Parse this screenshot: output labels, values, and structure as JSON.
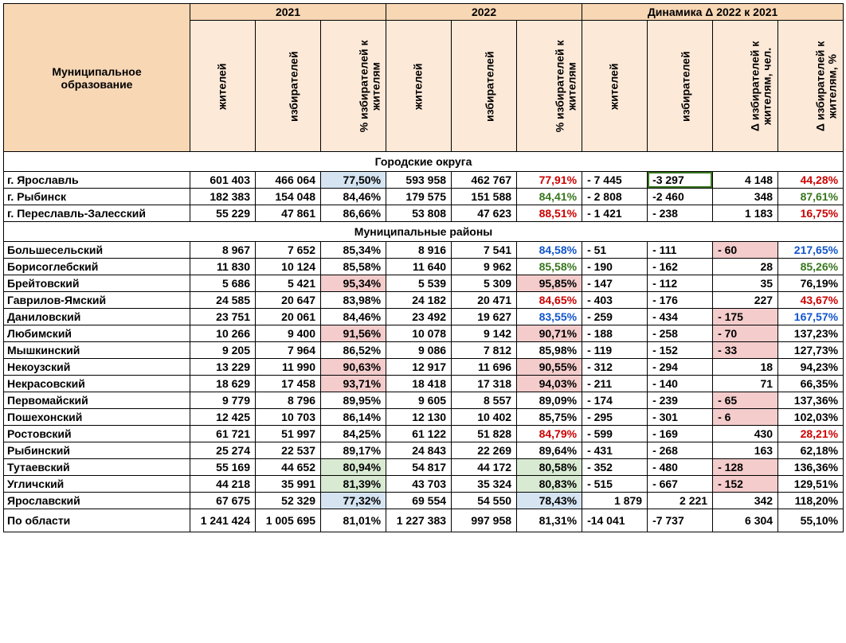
{
  "headers": {
    "municipality": "Муниципальное\nобразование",
    "y2021": "2021",
    "y2022": "2022",
    "dyn": "Динамика Δ 2022 к 2021",
    "residents": "жителей",
    "voters": "избирателей",
    "pct": "% избирателей к\nжителям",
    "d_residents": "жителей",
    "d_voters": "избирателей",
    "d_pct_abs": "Δ избирателей к\nжителям, чел.",
    "d_pct_pct": "Δ избирателей к\nжителям, %"
  },
  "sections": {
    "urban": "Городские округа",
    "districts": "Муниципальные районы"
  },
  "col_widths": {
    "name": 234,
    "num": 82
  },
  "colors": {
    "hdr_main": "#f8d7b5",
    "hdr_col": "#fde9d8",
    "bg_blue": "#d6e4f2",
    "bg_green": "#d9ead3",
    "bg_pink": "#f4cccc",
    "txt_red": "#cc0000",
    "txt_green": "#38761d",
    "txt_blue": "#1155cc"
  },
  "fonts": {
    "base_size_pt": 10.5,
    "bold": 700
  },
  "rows_urban": [
    {
      "name": "г. Ярославль",
      "r21": "601 403",
      "v21": "466 064",
      "p21": "77,50%",
      "p21_cls": "bg-blue",
      "r22": "593 958",
      "v22": "462 767",
      "p22": "77,91%",
      "p22_cls": "txt-red",
      "dr": "-  7 445",
      "dv": "-3 297",
      "dv_cls": "box-green",
      "dp": "4 148",
      "dpp": "44,28%",
      "dpp_cls": "txt-red"
    },
    {
      "name": "г. Рыбинск",
      "r21": "182 383",
      "v21": "154 048",
      "p21": "84,46%",
      "r22": "179 575",
      "v22": "151 588",
      "p22": "84,41%",
      "p22_cls": "txt-green",
      "dr": "-  2 808",
      "dv": "-2 460",
      "dp": "348",
      "dpp": "87,61%",
      "dpp_cls": "txt-green"
    },
    {
      "name": "г. Переславль-Залесский",
      "r21": "55 229",
      "v21": "47 861",
      "p21": "86,66%",
      "r22": "53 808",
      "v22": "47 623",
      "p22": "88,51%",
      "p22_cls": "txt-red",
      "dr": "-  1 421",
      "dv": "-   238",
      "dp": "1 183",
      "dpp": "16,75%",
      "dpp_cls": "txt-red"
    }
  ],
  "rows_districts": [
    {
      "name": "Большесельский",
      "r21": "8 967",
      "v21": "7 652",
      "p21": "85,34%",
      "r22": "8 916",
      "v22": "7 541",
      "p22": "84,58%",
      "p22_cls": "txt-blue",
      "dr": "-     51",
      "dv": "-   111",
      "dp": "-     60",
      "dp_cls": "bg-pink",
      "dpp": "217,65%",
      "dpp_cls": "txt-blue"
    },
    {
      "name": "Борисоглебский",
      "r21": "11 830",
      "v21": "10 124",
      "p21": "85,58%",
      "r22": "11 640",
      "v22": "9 962",
      "p22": "85,58%",
      "p22_cls": "txt-green",
      "dr": "-   190",
      "dv": "-   162",
      "dp": "28",
      "dpp": "85,26%",
      "dpp_cls": "txt-green"
    },
    {
      "name": "Брейтовский",
      "r21": "5 686",
      "v21": "5 421",
      "p21": "95,34%",
      "p21_cls": "bg-pink",
      "r22": "5 539",
      "v22": "5 309",
      "p22": "95,85%",
      "p22_cls": "bg-pink",
      "dr": "-   147",
      "dv": "-   112",
      "dp": "35",
      "dpp": "76,19%"
    },
    {
      "name": "Гаврилов-Ямский",
      "r21": "24 585",
      "v21": "20 647",
      "p21": "83,98%",
      "r22": "24 182",
      "v22": "20 471",
      "p22": "84,65%",
      "p22_cls": "txt-red",
      "dr": "-   403",
      "dv": "-   176",
      "dp": "227",
      "dpp": "43,67%",
      "dpp_cls": "txt-red"
    },
    {
      "name": "Даниловский",
      "r21": "23 751",
      "v21": "20 061",
      "p21": "84,46%",
      "r22": "23 492",
      "v22": "19 627",
      "p22": "83,55%",
      "p22_cls": "txt-blue",
      "dr": "-   259",
      "dv": "-   434",
      "dp": "-   175",
      "dp_cls": "bg-pink",
      "dpp": "167,57%",
      "dpp_cls": "txt-blue"
    },
    {
      "name": "Любимский",
      "r21": "10 266",
      "v21": "9 400",
      "p21": "91,56%",
      "p21_cls": "bg-pink",
      "r22": "10 078",
      "v22": "9 142",
      "p22": "90,71%",
      "p22_cls": "bg-pink",
      "dr": "-   188",
      "dv": "-   258",
      "dp": "-     70",
      "dp_cls": "bg-pink",
      "dpp": "137,23%"
    },
    {
      "name": "Мышкинский",
      "r21": "9 205",
      "v21": "7 964",
      "p21": "86,52%",
      "r22": "9 086",
      "v22": "7 812",
      "p22": "85,98%",
      "dr": "-   119",
      "dv": "-   152",
      "dp": "-     33",
      "dp_cls": "bg-pink",
      "dpp": "127,73%"
    },
    {
      "name": "Некоузский",
      "r21": "13 229",
      "v21": "11 990",
      "p21": "90,63%",
      "p21_cls": "bg-pink",
      "r22": "12 917",
      "v22": "11 696",
      "p22": "90,55%",
      "p22_cls": "bg-pink",
      "dr": "-   312",
      "dv": "-   294",
      "dp": "18",
      "dpp": "94,23%"
    },
    {
      "name": "Некрасовский",
      "r21": "18 629",
      "v21": "17 458",
      "p21": "93,71%",
      "p21_cls": "bg-pink",
      "r22": "18 418",
      "v22": "17 318",
      "p22": "94,03%",
      "p22_cls": "bg-pink",
      "dr": "-   211",
      "dv": "-   140",
      "dp": "71",
      "dpp": "66,35%"
    },
    {
      "name": "Первомайский",
      "r21": "9 779",
      "v21": "8 796",
      "p21": "89,95%",
      "r22": "9 605",
      "v22": "8 557",
      "p22": "89,09%",
      "dr": "-   174",
      "dv": "-   239",
      "dp": "-     65",
      "dp_cls": "bg-pink",
      "dpp": "137,36%"
    },
    {
      "name": "Пошехонский",
      "r21": "12 425",
      "v21": "10 703",
      "p21": "86,14%",
      "r22": "12 130",
      "v22": "10 402",
      "p22": "85,75%",
      "dr": "-   295",
      "dv": "-   301",
      "dp": "-       6",
      "dp_cls": "bg-pink",
      "dpp": "102,03%"
    },
    {
      "name": "Ростовский",
      "r21": "61 721",
      "v21": "51 997",
      "p21": "84,25%",
      "r22": "61 122",
      "v22": "51 828",
      "p22": "84,79%",
      "p22_cls": "txt-red",
      "dr": "-   599",
      "dv": "-   169",
      "dp": "430",
      "dpp": "28,21%",
      "dpp_cls": "txt-red"
    },
    {
      "name": "Рыбинский",
      "r21": "25 274",
      "v21": "22 537",
      "p21": "89,17%",
      "r22": "24 843",
      "v22": "22 269",
      "p22": "89,64%",
      "dr": "-   431",
      "dv": "-   268",
      "dp": "163",
      "dpp": "62,18%"
    },
    {
      "name": "Тутаевский",
      "r21": "55 169",
      "v21": "44 652",
      "p21": "80,94%",
      "p21_cls": "bg-green",
      "r22": "54 817",
      "v22": "44 172",
      "p22": "80,58%",
      "p22_cls": "bg-green",
      "dr": "-   352",
      "dv": "-   480",
      "dp": "-   128",
      "dp_cls": "bg-pink",
      "dpp": "136,36%"
    },
    {
      "name": "Угличский",
      "r21": "44 218",
      "v21": "35 991",
      "p21": "81,39%",
      "p21_cls": "bg-green",
      "r22": "43 703",
      "v22": "35 324",
      "p22": "80,83%",
      "p22_cls": "bg-green",
      "dr": "-   515",
      "dv": "-   667",
      "dp": "-   152",
      "dp_cls": "bg-pink",
      "dpp": "129,51%"
    },
    {
      "name": "Ярославский",
      "r21": "67 675",
      "v21": "52 329",
      "p21": "77,32%",
      "p21_cls": "bg-blue",
      "r22": "69 554",
      "v22": "54 550",
      "p22": "78,43%",
      "p22_cls": "bg-blue",
      "dr": "1 879",
      "dr_pos": true,
      "dv": "2 221",
      "dv_pos": true,
      "dp": "342",
      "dpp": "118,20%"
    }
  ],
  "total": {
    "name": "По области",
    "r21": "1 241 424",
    "v21": "1 005 695",
    "p21": "81,01%",
    "r22": "1 227 383",
    "v22": "997 958",
    "p22": "81,31%",
    "dr": "-14 041",
    "dv": "-7 737",
    "dp": "6 304",
    "dpp": "55,10%"
  }
}
